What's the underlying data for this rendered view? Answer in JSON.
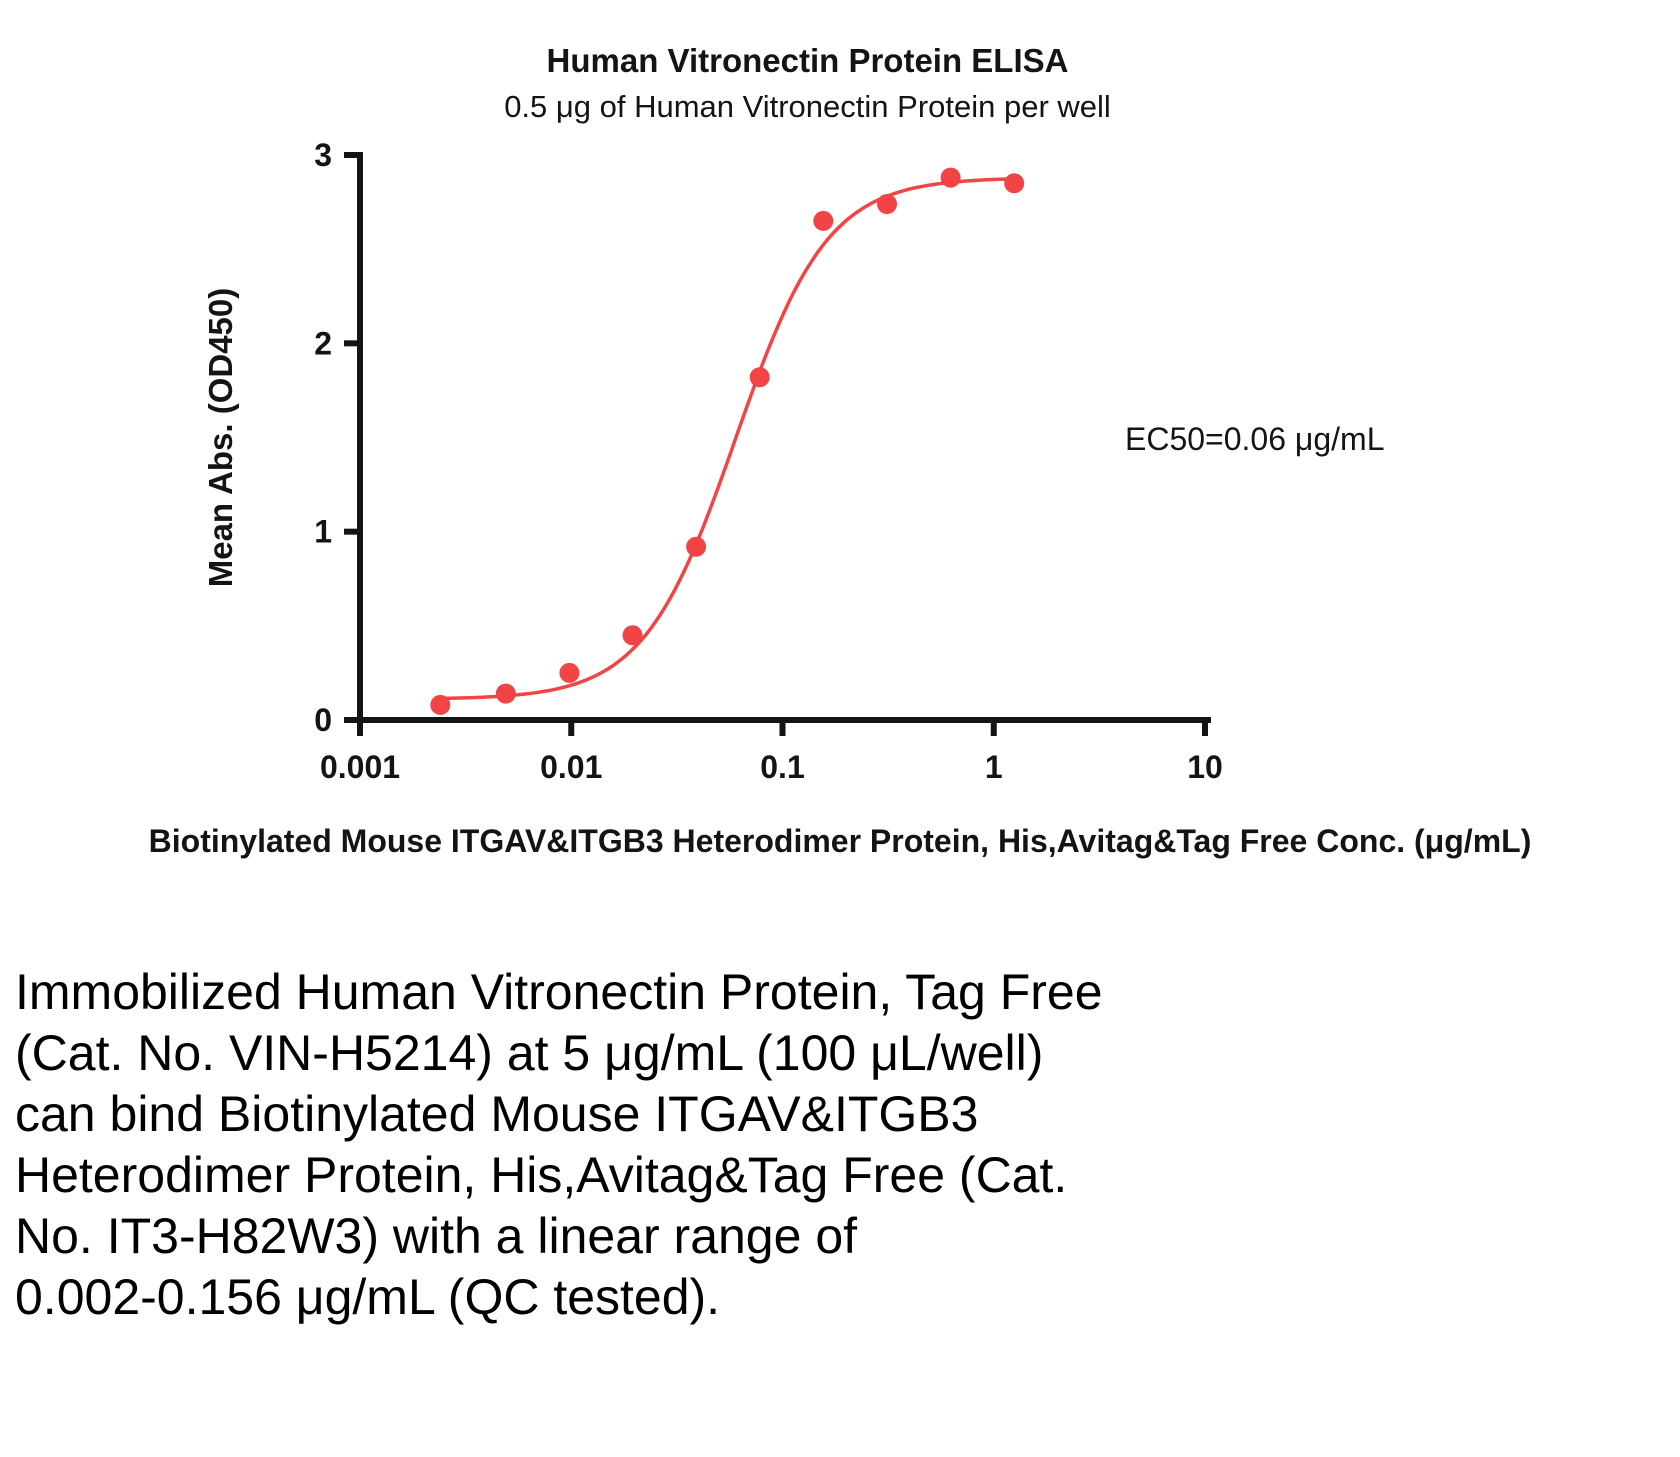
{
  "chart_data": {
    "type": "scatter",
    "title": "Human Vitronectin Protein ELISA",
    "subtitle": "0.5 μg of Human Vitronectin Protein per well",
    "xlabel": "Biotinylated Mouse ITGAV&ITGB3 Heterodimer Protein, His,Avitag&Tag Free Conc. (μg/mL)",
    "ylabel": "Mean Abs. (OD450)",
    "x_scale": "log10",
    "xlim": [
      0.001,
      10
    ],
    "ylim": [
      0,
      3
    ],
    "x_tick_values": [
      0.001,
      0.01,
      0.1,
      1,
      10
    ],
    "x_tick_labels": [
      "0.001",
      "0.01",
      "0.1",
      "1",
      "10"
    ],
    "y_tick_values": [
      0,
      1,
      2,
      3
    ],
    "y_tick_labels": [
      "0",
      "1",
      "2",
      "3"
    ],
    "grid": false,
    "legend": "none",
    "series": [
      {
        "name": "Human Vitronectin Protein ELISA",
        "x": [
          0.0024,
          0.0049,
          0.0098,
          0.0195,
          0.039,
          0.078,
          0.156,
          0.3125,
          0.625,
          1.25
        ],
        "y": [
          0.08,
          0.14,
          0.25,
          0.45,
          0.92,
          1.82,
          2.65,
          2.74,
          2.88,
          2.85
        ]
      }
    ],
    "fit_curve": {
      "model": "4PL",
      "bottom": 0.11,
      "top": 2.88,
      "ec50": 0.06,
      "hill": 2.0,
      "x_start": 0.0024,
      "x_end": 1.25
    },
    "annotation": "EC50=0.06 μg/mL",
    "colors": {
      "series": "#f24444",
      "axis": "#141414",
      "text": "#141414"
    }
  },
  "caption": {
    "lines": [
      "Immobilized Human Vitronectin Protein, Tag Free",
      "(Cat. No. VIN-H5214) at 5 μg/mL (100 μL/well)",
      "can bind Biotinylated Mouse ITGAV&ITGB3",
      "Heterodimer Protein, His,Avitag&Tag Free (Cat.",
      "No. IT3-H82W3) with a linear range of",
      "0.002-0.156 μg/mL (QC tested)."
    ]
  }
}
